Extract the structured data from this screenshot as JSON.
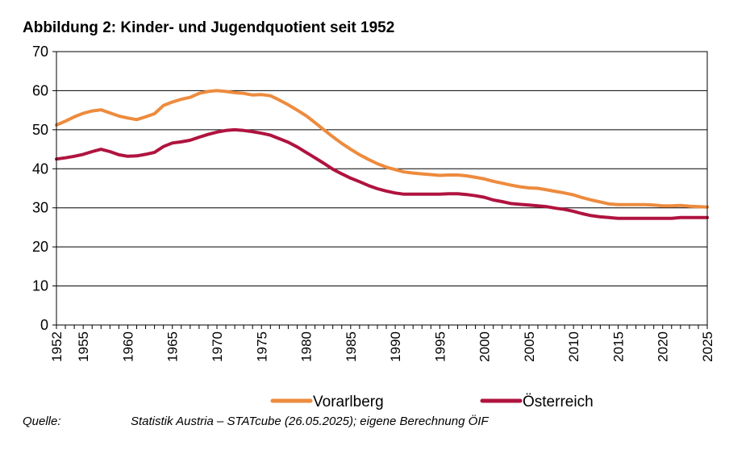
{
  "figure_title": "Abbildung 2: Kinder- und Jugendquotient seit 1952",
  "source": {
    "label": "Quelle:",
    "text": "Statistik Austria – STATcube (26.05.2025); eigene Berechnung ÖIF"
  },
  "chart_data": {
    "type": "line",
    "title": "Abbildung 2: Kinder- und Jugendquotient seit 1952",
    "xlabel": "",
    "ylabel": "",
    "xlim": [
      1952,
      2025
    ],
    "ylim": [
      0,
      70
    ],
    "y_ticks": [
      0,
      10,
      20,
      30,
      40,
      50,
      60,
      70
    ],
    "x_ticks": [
      1952,
      1955,
      1960,
      1965,
      1970,
      1975,
      1980,
      1985,
      1990,
      1995,
      2000,
      2005,
      2010,
      2015,
      2020,
      2025
    ],
    "grid": "horizontal",
    "legend_position": "bottom",
    "x": [
      1952,
      1953,
      1954,
      1955,
      1956,
      1957,
      1958,
      1959,
      1960,
      1961,
      1962,
      1963,
      1964,
      1965,
      1966,
      1967,
      1968,
      1969,
      1970,
      1971,
      1972,
      1973,
      1974,
      1975,
      1976,
      1977,
      1978,
      1979,
      1980,
      1981,
      1982,
      1983,
      1984,
      1985,
      1986,
      1987,
      1988,
      1989,
      1990,
      1991,
      1992,
      1993,
      1994,
      1995,
      1996,
      1997,
      1998,
      1999,
      2000,
      2001,
      2002,
      2003,
      2004,
      2005,
      2006,
      2007,
      2008,
      2009,
      2010,
      2011,
      2012,
      2013,
      2014,
      2015,
      2016,
      2017,
      2018,
      2019,
      2020,
      2021,
      2022,
      2023,
      2024,
      2025
    ],
    "series": [
      {
        "name": "Vorarlberg",
        "color": "#ED8B3E",
        "values": [
          51.2,
          52.2,
          53.3,
          54.2,
          54.8,
          55.1,
          54.3,
          53.5,
          53.0,
          52.6,
          53.3,
          54.1,
          56.2,
          57.1,
          57.8,
          58.3,
          59.3,
          59.8,
          60.0,
          59.8,
          59.5,
          59.3,
          58.9,
          59.0,
          58.7,
          57.6,
          56.4,
          55.0,
          53.6,
          51.8,
          50.0,
          48.2,
          46.5,
          45.0,
          43.6,
          42.4,
          41.3,
          40.4,
          39.8,
          39.2,
          38.9,
          38.7,
          38.5,
          38.3,
          38.4,
          38.4,
          38.2,
          37.8,
          37.4,
          36.8,
          36.3,
          35.8,
          35.4,
          35.1,
          35.0,
          34.6,
          34.2,
          33.8,
          33.3,
          32.6,
          32.0,
          31.5,
          31.0,
          30.8,
          30.8,
          30.8,
          30.8,
          30.7,
          30.5,
          30.5,
          30.6,
          30.4,
          30.3,
          30.2
        ]
      },
      {
        "name": "Österreich",
        "color": "#B0133F",
        "values": [
          42.5,
          42.8,
          43.2,
          43.7,
          44.4,
          45.0,
          44.4,
          43.6,
          43.2,
          43.3,
          43.7,
          44.2,
          45.7,
          46.6,
          46.9,
          47.3,
          48.1,
          48.8,
          49.4,
          49.8,
          50.0,
          49.8,
          49.5,
          49.1,
          48.6,
          47.7,
          46.8,
          45.6,
          44.2,
          42.8,
          41.4,
          39.9,
          38.7,
          37.6,
          36.7,
          35.7,
          34.9,
          34.3,
          33.8,
          33.5,
          33.5,
          33.5,
          33.5,
          33.5,
          33.6,
          33.6,
          33.4,
          33.1,
          32.7,
          32.0,
          31.6,
          31.1,
          30.9,
          30.7,
          30.5,
          30.3,
          29.9,
          29.6,
          29.1,
          28.5,
          28.0,
          27.7,
          27.5,
          27.3,
          27.3,
          27.3,
          27.3,
          27.3,
          27.3,
          27.3,
          27.5,
          27.5,
          27.5,
          27.5
        ]
      }
    ]
  }
}
